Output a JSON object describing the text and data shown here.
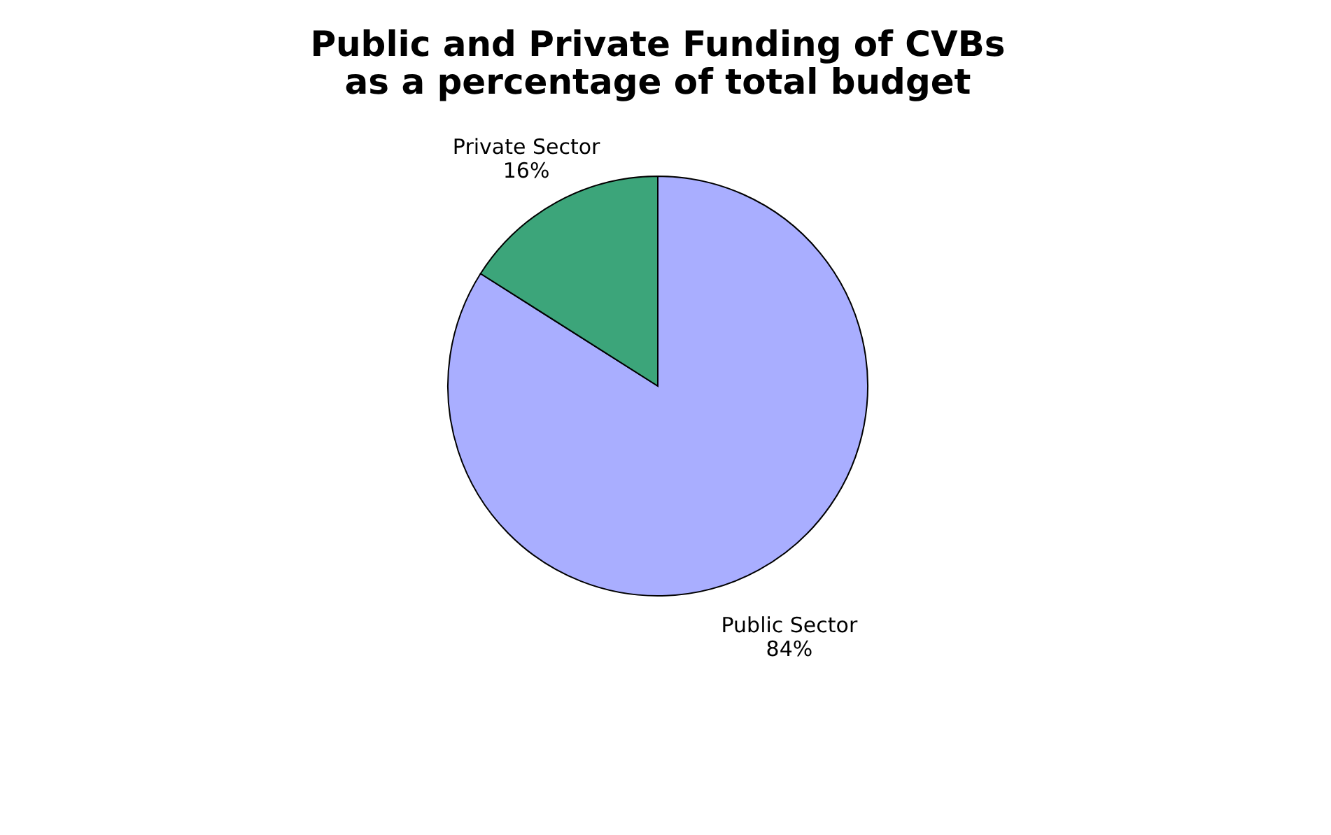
{
  "chart_data": {
    "type": "pie",
    "title": "Public and Private Funding of CVBs\nas a percentage of total budget",
    "categories": [
      "Public Sector",
      "Private Sector"
    ],
    "values": [
      84,
      16
    ],
    "colors": [
      "#a9aeff",
      "#3ca57a"
    ],
    "value_labels": [
      "84%",
      "16%"
    ],
    "legend": false
  }
}
